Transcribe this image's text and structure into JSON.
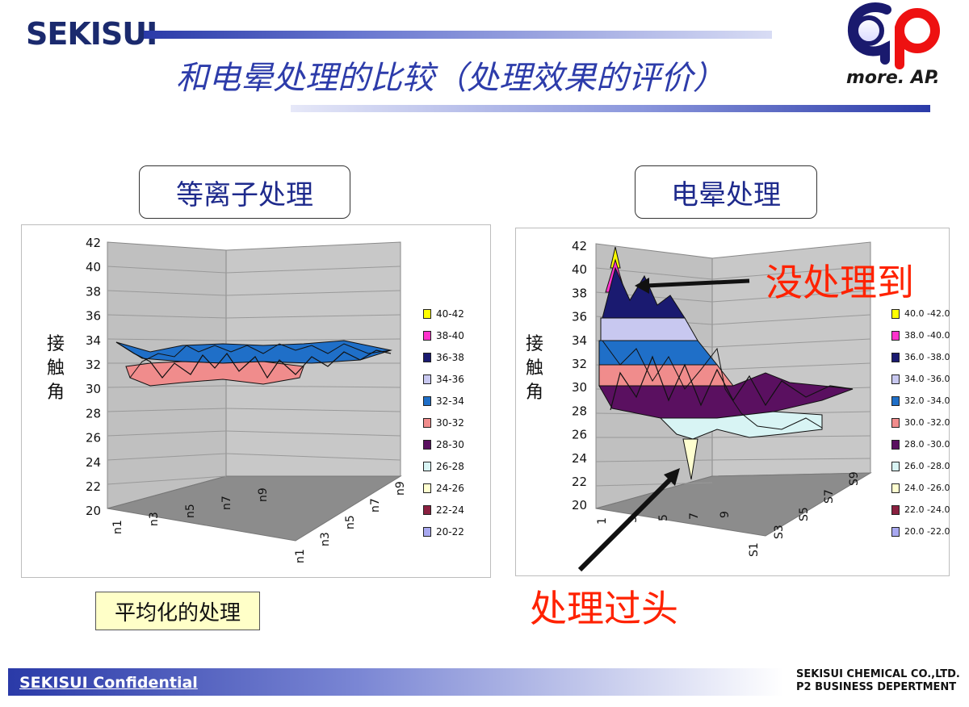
{
  "header": {
    "logo": "SEKISUI",
    "title": "和电晕处理的比较（处理效果的评价）",
    "brand_slogan": "more. AP."
  },
  "left_panel": {
    "label": "等离子处理",
    "note": "平均化的处理",
    "chart": {
      "type": "surface",
      "ylabel": [
        "接",
        "触",
        "角"
      ],
      "y_ticks": [
        "42",
        "40",
        "38",
        "36",
        "34",
        "32",
        "30",
        "28",
        "26",
        "24",
        "22",
        "20"
      ],
      "x_ticks_front": [
        "n1",
        "n3",
        "n5",
        "n7",
        "n9"
      ],
      "x_ticks_side": [
        "n1",
        "n3",
        "n5",
        "n7",
        "n9"
      ],
      "legend": [
        "40-42",
        "38-40",
        "36-38",
        "34-36",
        "32-34",
        "30-32",
        "28-30",
        "26-28",
        "24-26",
        "22-24",
        "20-22"
      ]
    }
  },
  "right_panel": {
    "label": "电晕处理",
    "annotation_top": "没处理到",
    "annotation_bottom": "处理过头",
    "chart": {
      "type": "surface",
      "ylabel": [
        "接",
        "触",
        "角"
      ],
      "y_ticks": [
        "42",
        "40",
        "38",
        "36",
        "34",
        "32",
        "30",
        "28",
        "26",
        "24",
        "22",
        "20"
      ],
      "x_ticks_front": [
        "1",
        "3",
        "5",
        "7",
        "9"
      ],
      "x_ticks_side": [
        "S1",
        "S3",
        "S5",
        "S7",
        "S9"
      ],
      "legend": [
        "40.0 -42.0",
        "38.0 -40.0",
        "36.0 -38.0",
        "34.0 -36.0",
        "32.0 -34.0",
        "30.0 -32.0",
        "28.0 -30.0",
        "26.0 -28.0",
        "24.0 -26.0",
        "22.0 -24.0",
        "20.0 -22.0"
      ]
    }
  },
  "legend_colors": [
    "#ffff00",
    "#ff33cc",
    "#1a1a70",
    "#c8c8f0",
    "#1f6fc8",
    "#f08c8c",
    "#5a1060",
    "#d8f4f4",
    "#ffffd0",
    "#8a2040",
    "#a8a8f0"
  ],
  "footer": {
    "confidential": "SEKISUI Confidential",
    "company_line1": "SEKISUI CHEMICAL CO.,LTD.",
    "company_line2": "P2 BUSINESS DEPERTMENT"
  }
}
